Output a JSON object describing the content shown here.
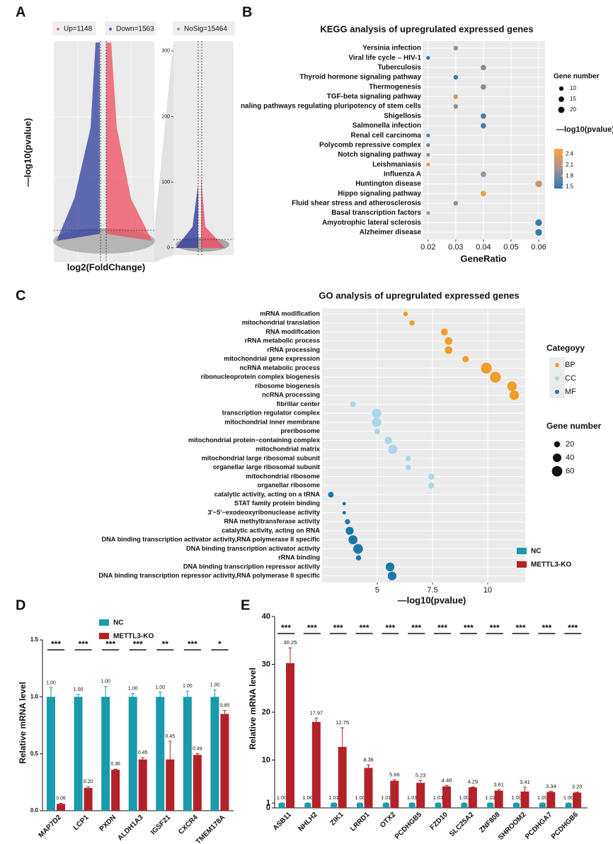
{
  "chart_data": [
    {
      "type": "volcano",
      "panel_label": "A",
      "legend": [
        {
          "name": "Up=1148",
          "color": "#f4717f"
        },
        {
          "name": "Down=1563",
          "color": "#4a5ab8"
        },
        {
          "name": "NoSig=15464",
          "color": "#9a9a9a"
        }
      ],
      "x_label": "log2(FoldChange)",
      "y_label": "—log10(pvalue)",
      "ylim": [
        -9,
        315
      ],
      "yticks": [
        0,
        100,
        200,
        300
      ]
    },
    {
      "type": "dot",
      "panel_label": "B",
      "title": "KEGG analysis of upregrulated expressed genes",
      "categories": [
        "Yersinia infection",
        "Viral life cycle – HIV-1",
        "Tuberculosis",
        "Thyroid hormone signaling pathway",
        "Thermogenesis",
        "TGF-beta signaling pathway",
        "naling pathways regulating pluripotency of stem cells",
        "Shigellosis",
        "Salmonella infection",
        "Renal cell carcinoma",
        "Polycomb repressive complex",
        "Notch signaling pathway",
        "Leishmaniasis",
        "Influenza A",
        "Huntington disease",
        "Hippo signaling pathway",
        "Fluid shear stress and atherosclerosis",
        "Basal transcription factors",
        "Amyotrophic lateral sclerosis",
        "Alzheimer disease"
      ],
      "x": [
        0.03,
        0.02,
        0.04,
        0.03,
        0.04,
        0.03,
        0.03,
        0.04,
        0.04,
        0.02,
        0.02,
        0.02,
        0.02,
        0.04,
        0.06,
        0.04,
        0.03,
        0.02,
        0.06,
        0.06
      ],
      "sizes": [
        11,
        7,
        15,
        11,
        15,
        11,
        11,
        15,
        15,
        7,
        7,
        7,
        7,
        15,
        22,
        15,
        11,
        7,
        22,
        22
      ],
      "color_values": [
        1.95,
        1.5,
        1.85,
        1.55,
        1.85,
        2.3,
        1.9,
        1.55,
        1.55,
        1.65,
        1.7,
        1.9,
        2.4,
        1.95,
        2.2,
        2.5,
        1.9,
        2.05,
        1.5,
        1.5
      ],
      "xlim": [
        0.018,
        0.0623
      ],
      "xticks": [
        0.02,
        0.03,
        0.04,
        0.05,
        0.06
      ],
      "x_label": "GeneRatio",
      "size_legend": {
        "title": "Gene number",
        "values": [
          10,
          15,
          20
        ]
      },
      "color_legend": {
        "title": "—log10(pvalue)",
        "lim": [
          1.45,
          2.55
        ],
        "ticks": [
          1.5,
          1.8,
          2.1,
          2.4
        ],
        "colors": [
          "#2679b4",
          "#a89392",
          "#f7a23c"
        ]
      }
    },
    {
      "type": "dot",
      "panel_label": "C",
      "title": "GO analysis of upregrulated expressed genes",
      "categories": [
        "mRNA modification",
        "mitochondrial translation",
        "RNA modification",
        "rRNA metabolic process",
        "rRNA processing",
        "mitochondrial gene expression",
        "ncRNA metabolic process",
        "ribonucleoprotein complex biogenesis",
        "ribosome biogenesis",
        "ncRNA processing",
        "fibrillar center",
        "transcription regulator complex",
        "mitochondrial inner membrane",
        "preribosome",
        "mitochondrial protein−containing complex",
        "mitochondrial matrix",
        "mitochondrial large ribosomal subunit",
        "organellar large ribosomal subunit",
        "mitochondrial ribosome",
        "organellar ribosome",
        "catalytic activity, acting on a tRNA",
        "STAT family protein binding",
        "3'−5'−exodeoxyribonuclease activity",
        "RNA methyltransferase activity",
        "catalytic activity, acting on RNA",
        "DNA binding transcription activator activity,RNA polymerase II specific",
        "DNA binding transcription activator activity",
        "rRNA binding",
        "DNA binding transcription repressor activity",
        "DNA binding transcription repressor activity,RNA polymerase II specific"
      ],
      "x": [
        6.28,
        6.57,
        8.04,
        8.23,
        8.23,
        9.0,
        9.94,
        10.35,
        11.1,
        11.2,
        3.9,
        4.97,
        4.97,
        5.0,
        5.5,
        5.7,
        6.4,
        6.4,
        7.44,
        7.44,
        2.9,
        3.5,
        3.5,
        3.65,
        3.75,
        3.9,
        4.13,
        4.15,
        5.58,
        5.67
      ],
      "sizes": [
        12,
        16,
        26,
        32,
        32,
        22,
        65,
        65,
        50,
        50,
        18,
        48,
        48,
        18,
        30,
        48,
        16,
        16,
        20,
        20,
        18,
        7,
        7,
        15,
        35,
        45,
        52,
        15,
        42,
        42
      ],
      "groups": [
        "BP",
        "BP",
        "BP",
        "BP",
        "BP",
        "BP",
        "BP",
        "BP",
        "BP",
        "BP",
        "CC",
        "CC",
        "CC",
        "CC",
        "CC",
        "CC",
        "CC",
        "CC",
        "CC",
        "CC",
        "MF",
        "MF",
        "MF",
        "MF",
        "MF",
        "MF",
        "MF",
        "MF",
        "MF",
        "MF"
      ],
      "xlim": [
        2.5,
        11.7
      ],
      "xticks": [
        5,
        7.5,
        10
      ],
      "x_label": "—log10(pvalue)",
      "group_legend": {
        "title": "Categoyy",
        "names": [
          "BP",
          "CC",
          "MF"
        ],
        "colors": [
          "#f39c26",
          "#a9d8e6",
          "#1b78a8"
        ]
      },
      "size_legend": {
        "title": "Gene number",
        "values": [
          20,
          40,
          60
        ]
      }
    },
    {
      "type": "bar",
      "panel_label": "D",
      "y_label": "Relative mRNA level",
      "categories": [
        "MAP7D2",
        "LCP1",
        "PXDN",
        "ALDH1A3",
        "IGSF21",
        "CXCR4",
        "TMEM178A"
      ],
      "series": [
        {
          "name": "NC",
          "color": "#1a9aad",
          "values": [
            1,
            1,
            1,
            1,
            1,
            1,
            1
          ],
          "value_labels": [
            "1.00",
            "1.00",
            "1.00",
            "1.00",
            "1.00",
            "1.00",
            "1.00"
          ],
          "errors": [
            0.08,
            0.02,
            0.09,
            0.03,
            0.04,
            0.05,
            0.06
          ]
        },
        {
          "name": "METTL3-KO",
          "color": "#b22228",
          "values": [
            0.06,
            0.2,
            0.36,
            0.45,
            0.45,
            0.49,
            0.85
          ],
          "value_labels": [
            "0.06",
            "0.20",
            "0.36",
            "0.45",
            "0.45",
            "0.49",
            "0.85"
          ],
          "errors": [
            0.005,
            0.01,
            0.005,
            0.015,
            0.16,
            0.01,
            0.03
          ]
        }
      ],
      "significance": [
        "***",
        "***",
        "***",
        "***",
        "**",
        "***",
        "*"
      ],
      "ylim": [
        0,
        1.5
      ],
      "yticks": [
        {
          "value": 0,
          "label": "0.0"
        },
        0.5,
        {
          "value": 1,
          "label": "1.0"
        },
        1.5
      ]
    },
    {
      "type": "bar",
      "panel_label": "E",
      "y_label": "Relative mRNA level",
      "categories": [
        "ASB11",
        "NHLH2",
        "ZIK1",
        "LRRD1",
        "OTX2",
        "PCDHGB5",
        "FZD10",
        "SLC25A2",
        "ZNF808",
        "SHROOM2",
        "PCDHGA7",
        "PCDHGB6"
      ],
      "series": [
        {
          "name": "NC",
          "color": "#1a9aad",
          "values": [
            1,
            1,
            1.01,
            1,
            1.01,
            1.01,
            1.01,
            1,
            1.01,
            1,
            1,
            1
          ],
          "value_labels": [
            "1.00",
            "1.00",
            "1.01",
            "1.00",
            "1.01",
            "1.01",
            "1.01",
            "1.00",
            "1.01",
            "1.00",
            "1.00",
            "1.00"
          ],
          "errors": [
            0.05,
            0.05,
            0.05,
            0.05,
            0.05,
            0.05,
            0.05,
            0.05,
            0.05,
            0.05,
            0.05,
            0.05
          ]
        },
        {
          "name": "METTL3-KO",
          "color": "#b22228",
          "values": [
            30.25,
            17.97,
            12.75,
            8.36,
            5.66,
            5.23,
            4.48,
            4.29,
            3.61,
            3.41,
            3.34,
            3.2
          ],
          "value_labels": [
            "30.25",
            "17.97",
            "12.75",
            "8.36",
            "5.66",
            "5.23",
            "4.48",
            "4.29",
            "3.61",
            "3.41",
            "3.34",
            "3.20"
          ],
          "errors": [
            3.2,
            0.8,
            4.0,
            0.6,
            0.2,
            0.5,
            0.2,
            0.1,
            0.2,
            0.9,
            0.1,
            0.1
          ]
        }
      ],
      "significance": [
        "***",
        "***",
        "***",
        "***",
        "***",
        "***",
        "***",
        "***",
        "***",
        "***",
        "***",
        "***"
      ],
      "ylim": [
        0,
        40
      ],
      "yticks": [
        0,
        1,
        10,
        20,
        30,
        40
      ]
    }
  ]
}
